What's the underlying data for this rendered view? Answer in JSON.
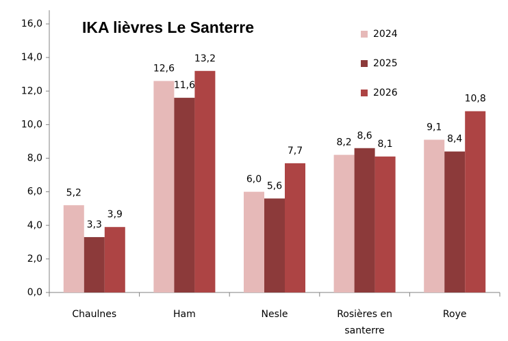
{
  "chart_data": {
    "type": "bar",
    "title": "IKA lièvres Le Santerre",
    "categories": [
      "Chaulnes",
      "Ham",
      "Nesle",
      "Rosières en santerre",
      "Roye"
    ],
    "series": [
      {
        "name": "2024",
        "color": "#e6b9b8",
        "values": [
          5.2,
          12.6,
          6.0,
          8.2,
          9.1
        ],
        "value_labels": [
          "5,2",
          "12,6",
          "6,0",
          "8,2",
          "9,1"
        ]
      },
      {
        "name": "2025",
        "color": "#8c3a3a",
        "values": [
          3.3,
          11.6,
          5.6,
          8.6,
          8.4
        ],
        "value_labels": [
          "3,3",
          "11,6",
          "5,6",
          "8,6",
          "8,4"
        ]
      },
      {
        "name": "2026",
        "color": "#ad4444",
        "values": [
          3.9,
          13.2,
          7.7,
          8.1,
          10.8
        ],
        "value_labels": [
          "3,9",
          "13,2",
          "7,7",
          "8,1",
          "10,8"
        ]
      }
    ],
    "ylim": [
      0,
      16
    ],
    "yticks": [
      {
        "value": 0,
        "label": "0,0"
      },
      {
        "value": 2,
        "label": "2,0"
      },
      {
        "value": 4,
        "label": "4,0"
      },
      {
        "value": 6,
        "label": "6,0"
      },
      {
        "value": 8,
        "label": "8,0"
      },
      {
        "value": 10,
        "label": "10,0"
      },
      {
        "value": 12,
        "label": "12,0"
      },
      {
        "value": 14,
        "label": "14,0"
      },
      {
        "value": 16,
        "label": "16,0"
      }
    ]
  }
}
